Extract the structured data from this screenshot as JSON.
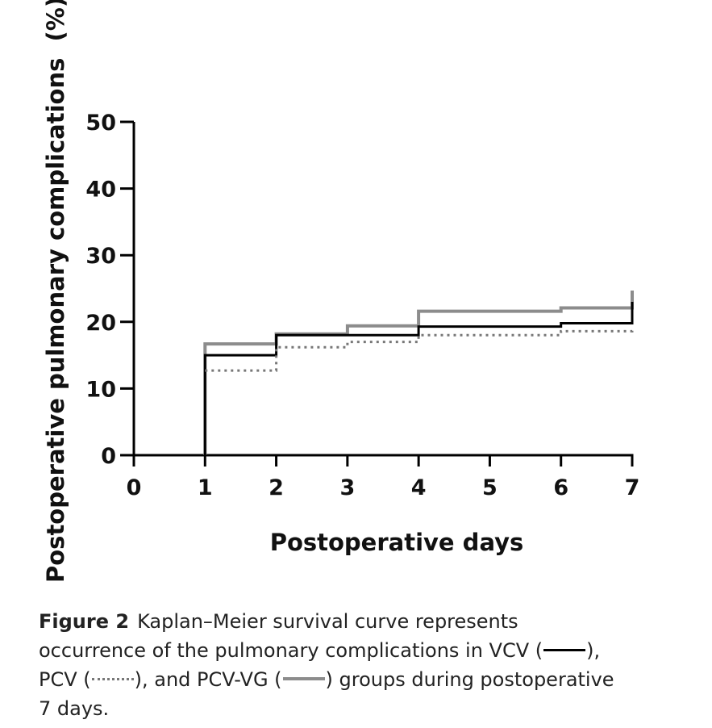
{
  "chart_data": {
    "type": "line",
    "step": true,
    "title": "",
    "xlabel": "Postoperative days",
    "ylabel": "Postoperative pulmonary complications  (%)",
    "xlim": [
      0,
      7
    ],
    "ylim": [
      0,
      50
    ],
    "x_ticks": [
      0,
      1,
      2,
      3,
      4,
      5,
      6,
      7
    ],
    "y_ticks": [
      0,
      10,
      20,
      30,
      40,
      50
    ],
    "grid": false,
    "series": [
      {
        "name": "PCV-VG",
        "color": "#8c8c8c",
        "style": "solid",
        "width": 4,
        "points": [
          [
            1,
            0
          ],
          [
            1,
            16.7
          ],
          [
            2,
            16.7
          ],
          [
            2,
            18.2
          ],
          [
            3,
            18.2
          ],
          [
            3,
            19.4
          ],
          [
            4,
            19.4
          ],
          [
            4,
            21.6
          ],
          [
            6,
            21.6
          ],
          [
            6,
            22.1
          ],
          [
            7,
            22.1
          ],
          [
            7,
            24.7
          ]
        ]
      },
      {
        "name": "VCV",
        "color": "#000000",
        "style": "solid",
        "width": 3,
        "points": [
          [
            1,
            0
          ],
          [
            1,
            15.0
          ],
          [
            2,
            15.0
          ],
          [
            2,
            18.0
          ],
          [
            4,
            18.0
          ],
          [
            4,
            19.3
          ],
          [
            6,
            19.3
          ],
          [
            6,
            19.8
          ],
          [
            7,
            19.8
          ],
          [
            7,
            23.0
          ]
        ]
      },
      {
        "name": "PCV",
        "color": "#777777",
        "style": "dotted",
        "width": 3,
        "points": [
          [
            1,
            12.7
          ],
          [
            2,
            12.7
          ],
          [
            2,
            16.2
          ],
          [
            3,
            16.2
          ],
          [
            3,
            17.0
          ],
          [
            4,
            17.0
          ],
          [
            4,
            18.0
          ],
          [
            6,
            18.0
          ],
          [
            6,
            18.6
          ],
          [
            7,
            18.6
          ],
          [
            7,
            19.0
          ]
        ]
      }
    ]
  },
  "caption": {
    "label": "Figure 2",
    "line1": "Kaplan–Meier survival curve represents",
    "line2_a": "occurrence of the pulmonary complications in VCV (",
    "line2_b": "),",
    "line3_a": "PCV (",
    "line3_b": "), and PCV-VG (",
    "line3_c": ") groups during postoperative",
    "line4": "7  days."
  }
}
